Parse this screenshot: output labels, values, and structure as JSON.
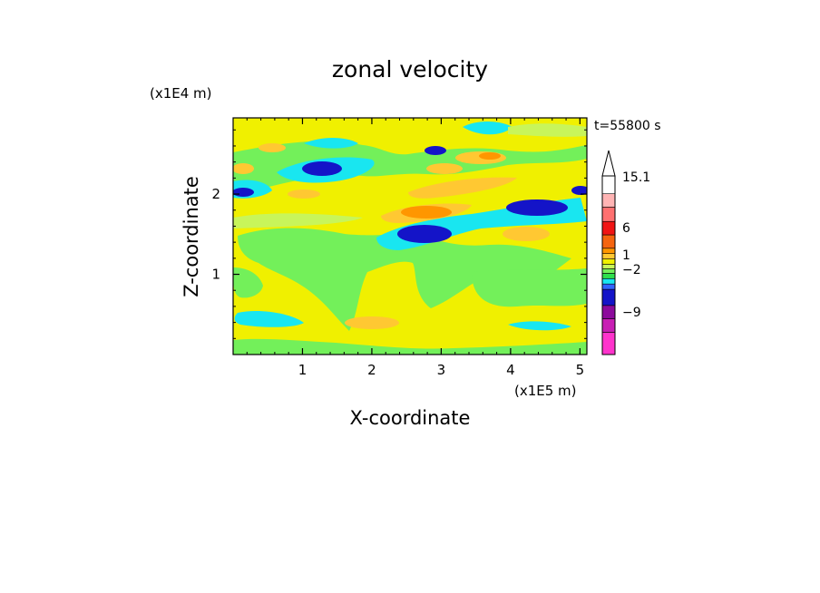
{
  "chart_data": {
    "type": "heatmap",
    "title": "zonal velocity",
    "time_label": "t=55800 s",
    "xlabel": "X-coordinate",
    "ylabel": "Z-coordinate",
    "x_scale_label": "(x1E5 m)",
    "y_scale_label": "(x1E4 m)",
    "xlim": [
      0,
      5.1
    ],
    "ylim": [
      0,
      2.95
    ],
    "x_ticks": [
      "1",
      "2",
      "3",
      "4",
      "5"
    ],
    "y_ticks": [
      "1",
      "2"
    ],
    "colorbar": {
      "labels": [
        {
          "text": "15.1",
          "value": 15.1
        },
        {
          "text": "6",
          "value": 6
        },
        {
          "text": "1",
          "value": 1
        },
        {
          "text": "−2",
          "value": -2
        },
        {
          "text": "−9",
          "value": -9
        }
      ],
      "bins": [
        {
          "color": "#ff33cc",
          "frac": 0.125
        },
        {
          "color": "#c81eb4",
          "frac": 0.075
        },
        {
          "color": "#8c0a9c",
          "frac": 0.075
        },
        {
          "color": "#1414c8",
          "frac": 0.09
        },
        {
          "color": "#3264ff",
          "frac": 0.03
        },
        {
          "color": "#19e6f0",
          "frac": 0.03
        },
        {
          "color": "#2ee04c",
          "frac": 0.03
        },
        {
          "color": "#73f05a",
          "frac": 0.025
        },
        {
          "color": "#c8f55a",
          "frac": 0.025
        },
        {
          "color": "#f0f000",
          "frac": 0.03
        },
        {
          "color": "#ffc832",
          "frac": 0.03
        },
        {
          "color": "#ff9600",
          "frac": 0.03
        },
        {
          "color": "#f5640f",
          "frac": 0.075
        },
        {
          "color": "#f01414",
          "frac": 0.075
        },
        {
          "color": "#ff7070",
          "frac": 0.08
        },
        {
          "color": "#ffb4b4",
          "frac": 0.075
        }
      ]
    }
  }
}
